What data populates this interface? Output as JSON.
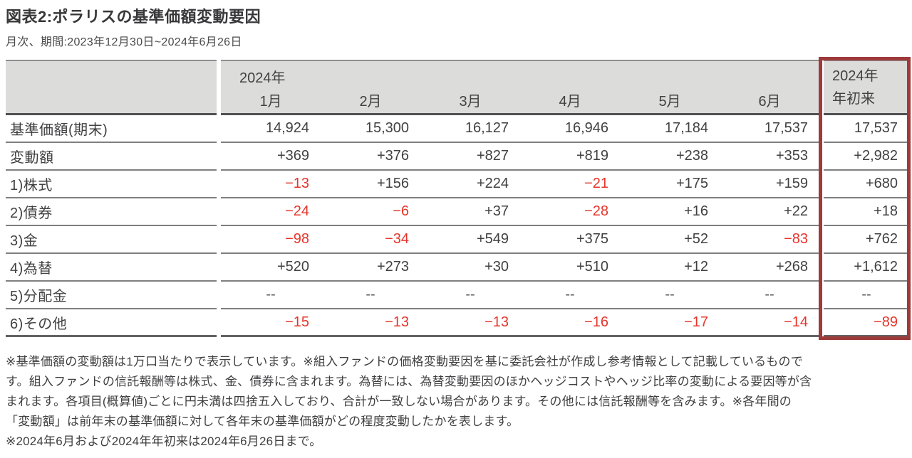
{
  "title": "図表2:ポラリスの基準価額変動要因",
  "subtitle": "月次、期間:2023年12月30日~2024年6月26日",
  "colors": {
    "highlight_border": "#9e3a3a",
    "negative_value": "#e6352b",
    "header_bg": "#dcdcda"
  },
  "table": {
    "year_label": "2024年",
    "month_headers": [
      "1月",
      "2月",
      "3月",
      "4月",
      "5月",
      "6月"
    ],
    "ytd_header_line1": "2024年",
    "ytd_header_line2": "年初来",
    "rows": [
      {
        "label": "基準価額(期末)",
        "values": [
          "14,924",
          "15,300",
          "16,127",
          "16,946",
          "17,184",
          "17,537"
        ],
        "ytd": "17,537"
      },
      {
        "label": "変動額",
        "values": [
          "+369",
          "+376",
          "+827",
          "+819",
          "+238",
          "+353"
        ],
        "ytd": "+2,982"
      },
      {
        "label": "1)株式",
        "values": [
          "−13",
          "+156",
          "+224",
          "−21",
          "+175",
          "+159"
        ],
        "ytd": "+680"
      },
      {
        "label": "2)債券",
        "values": [
          "−24",
          "−6",
          "+37",
          "−28",
          "+16",
          "+22"
        ],
        "ytd": "+18"
      },
      {
        "label": "3)金",
        "values": [
          "−98",
          "−34",
          "+549",
          "+375",
          "+52",
          "−83"
        ],
        "ytd": "+762"
      },
      {
        "label": "4)為替",
        "values": [
          "+520",
          "+273",
          "+30",
          "+510",
          "+12",
          "+268"
        ],
        "ytd": "+1,612"
      },
      {
        "label": "5)分配金",
        "values": [
          "--",
          "--",
          "--",
          "--",
          "--",
          "--"
        ],
        "ytd": "--"
      },
      {
        "label": "6)その他",
        "values": [
          "−15",
          "−13",
          "−13",
          "−16",
          "−17",
          "−14"
        ],
        "ytd": "−89"
      }
    ]
  },
  "notes": [
    "※基準価額の変動額は1万口当たりで表示しています。※組入ファンドの価格変動要因を基に委託会社が作成し参考情報として記載しているもので",
    "す。組入ファンドの信託報酬等は株式、金、債券に含まれます。為替には、為替変動要因のほかヘッジコストやヘッジ比率の変動による要因等が含",
    "まれます。各項目(概算値)ごとに円未満は四捨五入しており、合計が一致しない場合があります。その他には信託報酬等を含みます。※各年間の",
    "「変動額」は前年末の基準価額に対して各年末の基準価額がどの程度変動したかを表します。",
    "※2024年6月および2024年年初来は2024年6月26日まで。"
  ]
}
